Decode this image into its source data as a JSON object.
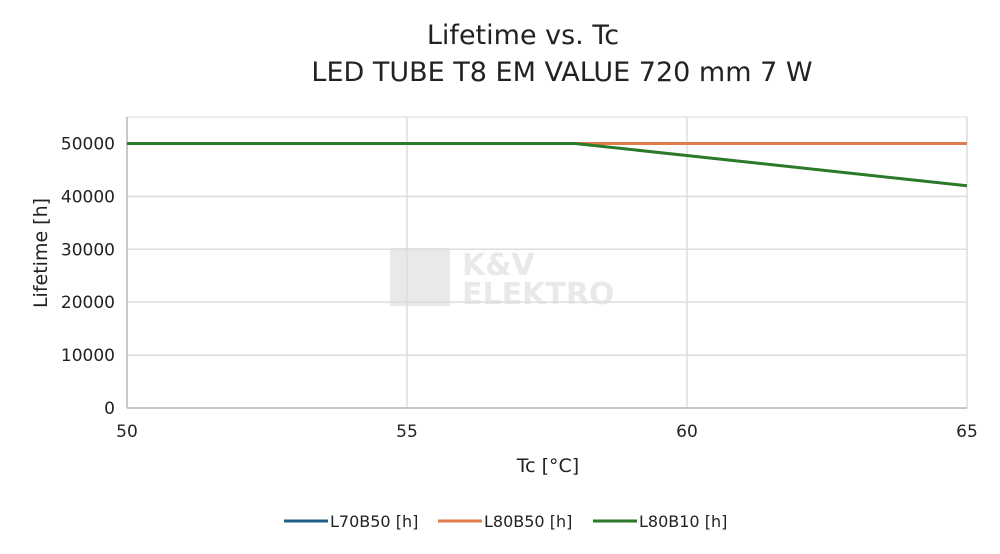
{
  "chart_data": {
    "type": "line",
    "title": "Lifetime vs. Tc",
    "subtitle": "LED TUBE T8 EM VALUE 720 mm 7 W",
    "xlabel": "Tc [°C]",
    "ylabel": "Lifetime [h]",
    "xlim": [
      50,
      65
    ],
    "ylim": [
      0,
      55000
    ],
    "xticks": [
      50,
      55,
      60,
      65
    ],
    "yticks": [
      0,
      10000,
      20000,
      30000,
      40000,
      50000
    ],
    "grid": true,
    "legend": "bottom",
    "watermark": "K&V ELEKTRO",
    "series": [
      {
        "name": "L70B50 [h]",
        "color": "#1f5f8b",
        "x": [
          50,
          58,
          65
        ],
        "y": [
          50000,
          50000,
          50000
        ]
      },
      {
        "name": "L80B50 [h]",
        "color": "#e07b4a",
        "x": [
          50,
          58,
          65
        ],
        "y": [
          50000,
          50000,
          50000
        ]
      },
      {
        "name": "L80B10 [h]",
        "color": "#2a7a2a",
        "x": [
          50,
          58,
          65
        ],
        "y": [
          50000,
          50000,
          42000
        ]
      }
    ]
  }
}
